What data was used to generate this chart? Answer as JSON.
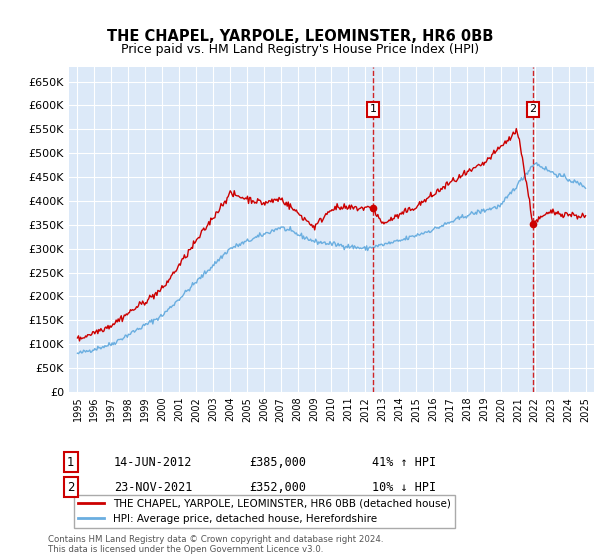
{
  "title": "THE CHAPEL, YARPOLE, LEOMINSTER, HR6 0BB",
  "subtitle": "Price paid vs. HM Land Registry's House Price Index (HPI)",
  "ylim": [
    0,
    680000
  ],
  "ytick_values": [
    0,
    50000,
    100000,
    150000,
    200000,
    250000,
    300000,
    350000,
    400000,
    450000,
    500000,
    550000,
    600000,
    650000
  ],
  "xlim_start": 1994.5,
  "xlim_end": 2025.5,
  "xtick_years": [
    1995,
    1996,
    1997,
    1998,
    1999,
    2000,
    2001,
    2002,
    2003,
    2004,
    2005,
    2006,
    2007,
    2008,
    2009,
    2010,
    2011,
    2012,
    2013,
    2014,
    2015,
    2016,
    2017,
    2018,
    2019,
    2020,
    2021,
    2022,
    2023,
    2024,
    2025
  ],
  "bg_color": "#dce9f8",
  "grid_color": "#ffffff",
  "sale_color": "#cc0000",
  "hpi_color": "#6aaee0",
  "marker1_x": 2012.45,
  "marker2_x": 2021.9,
  "marker1_price": 385000,
  "marker2_price": 352000,
  "legend_line1": "THE CHAPEL, YARPOLE, LEOMINSTER, HR6 0BB (detached house)",
  "legend_line2": "HPI: Average price, detached house, Herefordshire",
  "ann1_date": "14-JUN-2012",
  "ann1_price": "£385,000",
  "ann1_hpi": "41% ↑ HPI",
  "ann2_date": "23-NOV-2021",
  "ann2_price": "£352,000",
  "ann2_hpi": "10% ↓ HPI",
  "footnote": "Contains HM Land Registry data © Crown copyright and database right 2024.\nThis data is licensed under the Open Government Licence v3.0."
}
